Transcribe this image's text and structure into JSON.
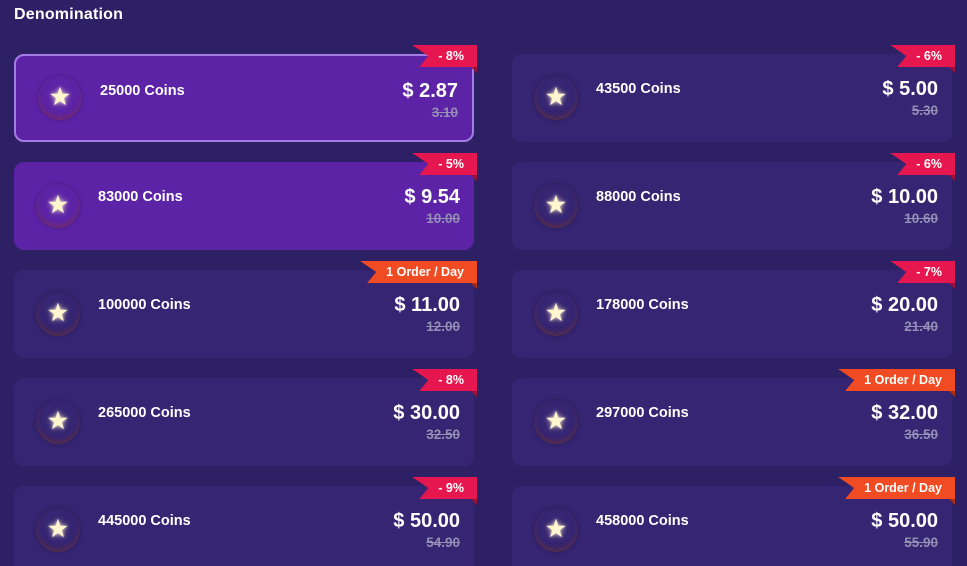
{
  "page": {
    "title": "Denomination"
  },
  "theme": {
    "background": "#2d2064",
    "card_default": "#352572",
    "card_highlight": "#5c23a6",
    "card_selected_border": "#a57ce6",
    "badge_discount": "#e6164e",
    "badge_order": "#f04b22",
    "price_color": "#ffffff",
    "old_price_color": "#948fb5",
    "coin_icon": "star-coin-icon"
  },
  "cards": [
    {
      "coins": "25000 Coins",
      "price": "$ 2.87",
      "old_price": "3.10",
      "badge": "- 8%",
      "badge_type": "discount",
      "state": "selected"
    },
    {
      "coins": "43500 Coins",
      "price": "$ 5.00",
      "old_price": "5.30",
      "badge": "- 6%",
      "badge_type": "discount",
      "state": "default"
    },
    {
      "coins": "83000 Coins",
      "price": "$ 9.54",
      "old_price": "10.00",
      "badge": "- 5%",
      "badge_type": "discount",
      "state": "highlight"
    },
    {
      "coins": "88000 Coins",
      "price": "$ 10.00",
      "old_price": "10.60",
      "badge": "- 6%",
      "badge_type": "discount",
      "state": "default"
    },
    {
      "coins": "100000 Coins",
      "price": "$ 11.00",
      "old_price": "12.00",
      "badge": "1 Order / Day",
      "badge_type": "order",
      "state": "default"
    },
    {
      "coins": "178000 Coins",
      "price": "$ 20.00",
      "old_price": "21.40",
      "badge": "- 7%",
      "badge_type": "discount",
      "state": "default"
    },
    {
      "coins": "265000 Coins",
      "price": "$ 30.00",
      "old_price": "32.50",
      "badge": "- 8%",
      "badge_type": "discount",
      "state": "default"
    },
    {
      "coins": "297000 Coins",
      "price": "$ 32.00",
      "old_price": "36.50",
      "badge": "1 Order / Day",
      "badge_type": "order",
      "state": "default"
    },
    {
      "coins": "445000 Coins",
      "price": "$ 50.00",
      "old_price": "54.90",
      "badge": "- 9%",
      "badge_type": "discount",
      "state": "default"
    },
    {
      "coins": "458000 Coins",
      "price": "$ 50.00",
      "old_price": "55.90",
      "badge": "1 Order / Day",
      "badge_type": "order",
      "state": "default"
    }
  ]
}
